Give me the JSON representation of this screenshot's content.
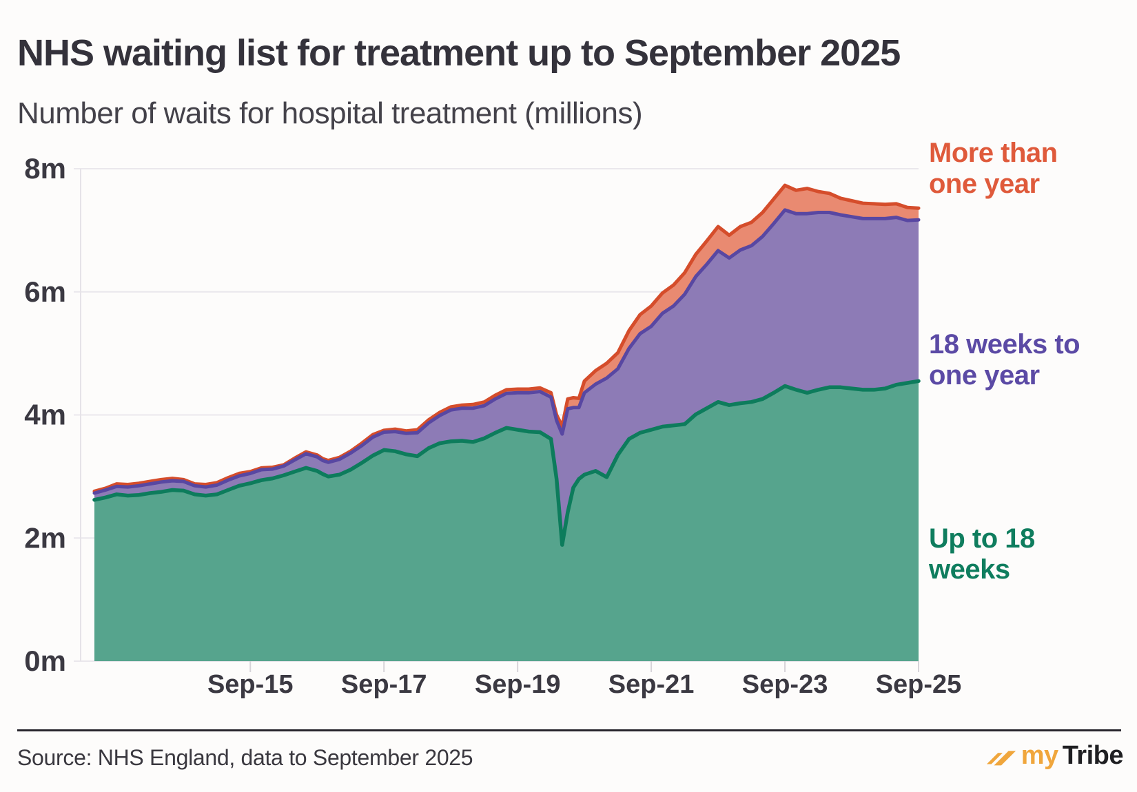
{
  "header": {
    "title": "NHS waiting list for treatment up to September 2025",
    "subtitle": "Number of waits for hospital treatment (millions)"
  },
  "footer": {
    "source": "Source: NHS England, data to September 2025",
    "logo": {
      "icon": "double-slash-icon",
      "part1": "my",
      "part2": "Tribe",
      "gold": "#f0a63c",
      "dark": "#1f1f22"
    }
  },
  "chart_data": {
    "type": "area",
    "stacked": true,
    "title": "NHS waiting list for treatment up to September 2025",
    "ylabel": "Number of waits for hospital treatment (millions)",
    "ylim": [
      0,
      8
    ],
    "grid": "horizontal",
    "legend_position": "right",
    "y_ticks": [
      {
        "v": 0,
        "label": "0m"
      },
      {
        "v": 2,
        "label": "2m"
      },
      {
        "v": 4,
        "label": "4m"
      },
      {
        "v": 6,
        "label": "6m"
      },
      {
        "v": 8,
        "label": "8m"
      }
    ],
    "x_ticks": [
      {
        "m": 28,
        "label": "Sep-15"
      },
      {
        "m": 52,
        "label": "Sep-17"
      },
      {
        "m": 76,
        "label": "Sep-19"
      },
      {
        "m": 100,
        "label": "Sep-21"
      },
      {
        "m": 124,
        "label": "Sep-23"
      },
      {
        "m": 148,
        "label": "Sep-25"
      }
    ],
    "x_start_label": "May-2013",
    "x_range_months": 148,
    "months": [
      0,
      2,
      4,
      6,
      8,
      10,
      12,
      14,
      16,
      18,
      20,
      22,
      24,
      26,
      28,
      30,
      32,
      34,
      36,
      38,
      40,
      41,
      42,
      44,
      46,
      48,
      50,
      52,
      54,
      56,
      58,
      60,
      62,
      64,
      66,
      68,
      70,
      72,
      74,
      76,
      78,
      80,
      82,
      83,
      84,
      85,
      86,
      87,
      88,
      90,
      92,
      94,
      96,
      98,
      100,
      102,
      104,
      106,
      108,
      110,
      112,
      114,
      116,
      118,
      120,
      122,
      124,
      126,
      128,
      130,
      132,
      134,
      136,
      138,
      140,
      142,
      144,
      146,
      148
    ],
    "series": [
      {
        "key": "up_to_18_weeks",
        "name": "Up to 18 weeks",
        "fill": "#56a48d",
        "line": "#0d7c5c",
        "label_color": "#0f7d5e",
        "values": [
          2.62,
          2.66,
          2.71,
          2.69,
          2.7,
          2.73,
          2.75,
          2.78,
          2.77,
          2.71,
          2.69,
          2.71,
          2.78,
          2.85,
          2.89,
          2.94,
          2.97,
          3.02,
          3.08,
          3.14,
          3.09,
          3.04,
          3.0,
          3.03,
          3.11,
          3.22,
          3.34,
          3.43,
          3.41,
          3.36,
          3.33,
          3.46,
          3.54,
          3.57,
          3.58,
          3.56,
          3.62,
          3.71,
          3.79,
          3.76,
          3.73,
          3.72,
          3.61,
          2.96,
          1.89,
          2.42,
          2.82,
          2.96,
          3.03,
          3.09,
          2.99,
          3.35,
          3.61,
          3.71,
          3.76,
          3.81,
          3.83,
          3.85,
          4.01,
          4.11,
          4.21,
          4.16,
          4.19,
          4.21,
          4.26,
          4.36,
          4.47,
          4.41,
          4.36,
          4.41,
          4.45,
          4.45,
          4.43,
          4.41,
          4.41,
          4.43,
          4.49,
          4.52,
          4.55
        ]
      },
      {
        "key": "eighteen_weeks_to_one_year",
        "name": "18 weeks to one year",
        "fill": "#8d7bb6",
        "line": "#5847a2",
        "label_color": "#5b4aa5",
        "values": [
          0.11,
          0.12,
          0.13,
          0.14,
          0.15,
          0.15,
          0.16,
          0.15,
          0.15,
          0.14,
          0.14,
          0.15,
          0.16,
          0.16,
          0.16,
          0.17,
          0.15,
          0.15,
          0.19,
          0.23,
          0.23,
          0.22,
          0.23,
          0.25,
          0.27,
          0.28,
          0.3,
          0.29,
          0.32,
          0.34,
          0.38,
          0.41,
          0.45,
          0.51,
          0.53,
          0.55,
          0.53,
          0.55,
          0.56,
          0.6,
          0.63,
          0.66,
          0.68,
          0.95,
          1.8,
          1.68,
          1.3,
          1.16,
          1.33,
          1.41,
          1.61,
          1.4,
          1.47,
          1.61,
          1.68,
          1.84,
          1.94,
          2.11,
          2.24,
          2.34,
          2.46,
          2.39,
          2.49,
          2.54,
          2.64,
          2.75,
          2.86,
          2.86,
          2.91,
          2.88,
          2.84,
          2.8,
          2.79,
          2.78,
          2.78,
          2.76,
          2.72,
          2.64,
          2.62
        ]
      },
      {
        "key": "more_than_one_year",
        "name": "More than one year",
        "fill": "#e98a71",
        "line": "#d54d2b",
        "label_color": "#df5a3b",
        "values": [
          0.03,
          0.03,
          0.04,
          0.04,
          0.04,
          0.04,
          0.04,
          0.04,
          0.03,
          0.03,
          0.04,
          0.04,
          0.04,
          0.04,
          0.03,
          0.03,
          0.03,
          0.02,
          0.03,
          0.03,
          0.03,
          0.03,
          0.03,
          0.03,
          0.03,
          0.04,
          0.04,
          0.03,
          0.04,
          0.04,
          0.05,
          0.05,
          0.05,
          0.05,
          0.05,
          0.06,
          0.06,
          0.06,
          0.06,
          0.06,
          0.06,
          0.06,
          0.07,
          0.09,
          0.13,
          0.16,
          0.16,
          0.15,
          0.19,
          0.22,
          0.24,
          0.26,
          0.29,
          0.31,
          0.33,
          0.33,
          0.34,
          0.35,
          0.36,
          0.38,
          0.39,
          0.37,
          0.38,
          0.38,
          0.39,
          0.4,
          0.4,
          0.38,
          0.41,
          0.34,
          0.31,
          0.27,
          0.26,
          0.25,
          0.24,
          0.23,
          0.22,
          0.21,
          0.19
        ]
      }
    ],
    "legend": {
      "more_than_one_year": {
        "line1": "More than",
        "line2": "one year"
      },
      "w18_to_one_year": {
        "line1": "18 weeks to",
        "line2": "one year"
      },
      "up_to_18_weeks": {
        "line1": "Up to 18",
        "line2": "weeks"
      }
    },
    "colors": {
      "grid": "#eae7ec",
      "axis_line": "#e6e3e8",
      "tick": "#d7d4d9",
      "axis_text": "#3b3942"
    }
  }
}
